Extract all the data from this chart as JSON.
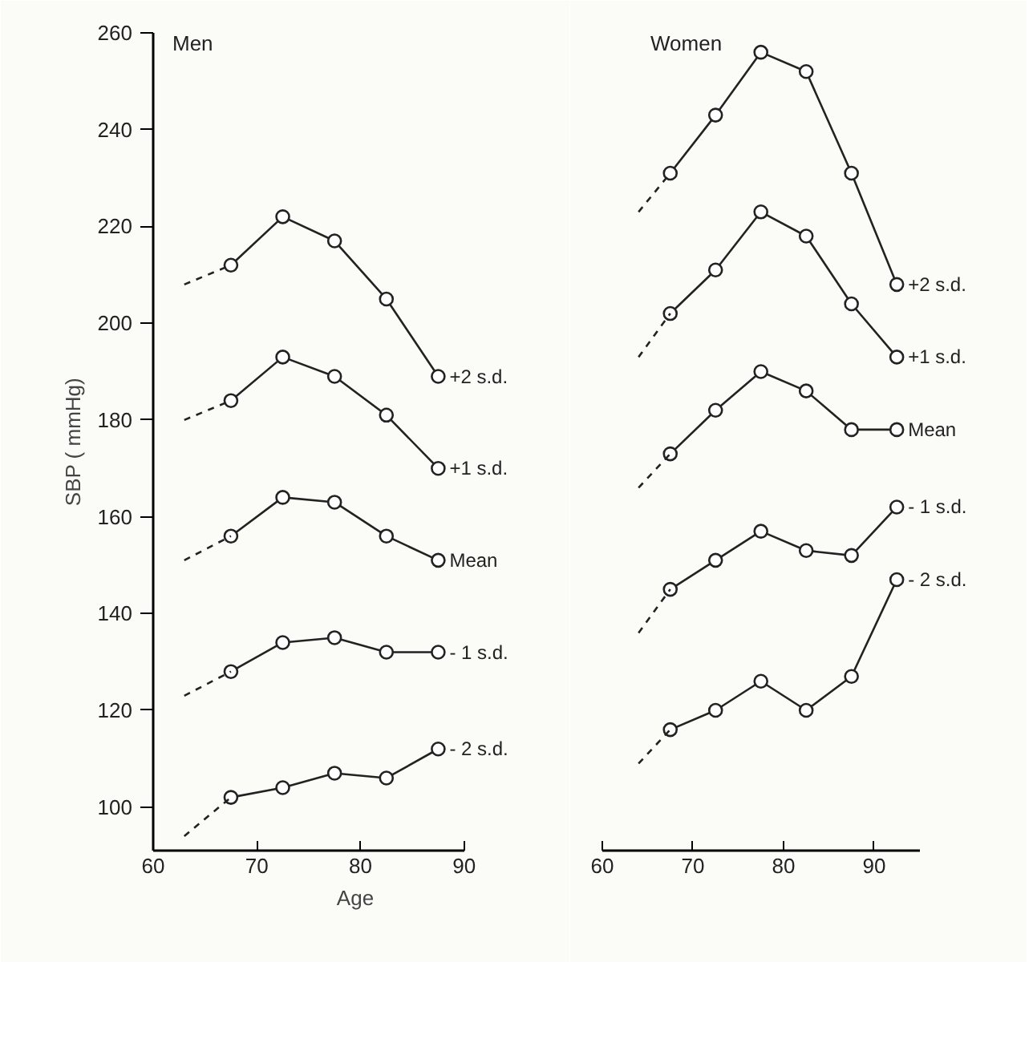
{
  "chart_data": [
    {
      "type": "line",
      "title": "Men",
      "ylabel": "SBP ( mmHg)",
      "xlabel": "Age",
      "xlim": [
        60,
        90
      ],
      "xticks": [
        60,
        70,
        80,
        90
      ],
      "ylim": [
        91,
        260
      ],
      "yticks": [
        100,
        120,
        140,
        160,
        180,
        200,
        220,
        240,
        260
      ],
      "grid": false,
      "marker": "circle",
      "series": [
        {
          "name": "+2 s.d.",
          "color": "#222222",
          "x": [
            67.5,
            72.5,
            77.5,
            82.5,
            87.5
          ],
          "values": [
            212,
            222,
            217,
            205,
            189
          ]
        },
        {
          "name": "+1 s.d.",
          "color": "#222222",
          "x": [
            67.5,
            72.5,
            77.5,
            82.5,
            87.5
          ],
          "values": [
            184,
            193,
            189,
            181,
            170
          ]
        },
        {
          "name": "Mean",
          "color": "#222222",
          "x": [
            67.5,
            72.5,
            77.5,
            82.5,
            87.5
          ],
          "values": [
            156,
            164,
            163,
            156,
            151
          ]
        },
        {
          "name": "- 1 s.d.",
          "color": "#222222",
          "x": [
            67.5,
            72.5,
            77.5,
            82.5,
            87.5
          ],
          "values": [
            128,
            134,
            135,
            132,
            132
          ]
        },
        {
          "name": "- 2 s.d.",
          "color": "#222222",
          "x": [
            67.5,
            72.5,
            77.5,
            82.5,
            87.5
          ],
          "values": [
            102,
            104,
            107,
            106,
            112
          ]
        },
        {
          "color": "#222222",
          "line_style": "dashed",
          "marker": "none",
          "x": [
            63,
            67.5
          ],
          "values": [
            208,
            212
          ]
        },
        {
          "color": "#222222",
          "line_style": "dashed",
          "marker": "none",
          "x": [
            63,
            67.5
          ],
          "values": [
            180,
            184
          ]
        },
        {
          "color": "#222222",
          "line_style": "dashed",
          "marker": "none",
          "x": [
            63,
            67.5
          ],
          "values": [
            151,
            156
          ]
        },
        {
          "color": "#222222",
          "line_style": "dashed",
          "marker": "none",
          "x": [
            63,
            67.5
          ],
          "values": [
            123,
            128
          ]
        },
        {
          "color": "#222222",
          "line_style": "dashed",
          "marker": "none",
          "x": [
            63,
            67.5
          ],
          "values": [
            94,
            102
          ]
        }
      ]
    },
    {
      "type": "line",
      "title": "Women",
      "xlim": [
        60,
        95
      ],
      "xticks": [
        60,
        70,
        80,
        90
      ],
      "ylim": [
        91,
        260
      ],
      "yticks": [
        100,
        120,
        140,
        160,
        180,
        200,
        220,
        240,
        260
      ],
      "tick_labels": "x",
      "grid": false,
      "marker": "circle",
      "series": [
        {
          "name": "+2 s.d.",
          "color": "#222222",
          "x": [
            67.5,
            72.5,
            77.5,
            82.5,
            87.5,
            92.5
          ],
          "values": [
            231,
            243,
            256,
            252,
            231,
            208
          ]
        },
        {
          "name": "+1 s.d.",
          "color": "#222222",
          "x": [
            67.5,
            72.5,
            77.5,
            82.5,
            87.5,
            92.5
          ],
          "values": [
            202,
            211,
            223,
            218,
            204,
            193
          ]
        },
        {
          "name": "Mean",
          "color": "#222222",
          "x": [
            67.5,
            72.5,
            77.5,
            82.5,
            87.5,
            92.5
          ],
          "values": [
            173,
            182,
            190,
            186,
            178,
            178
          ]
        },
        {
          "name": "- 1 s.d.",
          "color": "#222222",
          "x": [
            67.5,
            72.5,
            77.5,
            82.5,
            87.5,
            92.5
          ],
          "values": [
            145,
            151,
            157,
            153,
            152,
            162
          ]
        },
        {
          "name": "- 2 s.d.",
          "color": "#222222",
          "x": [
            67.5,
            72.5,
            77.5,
            82.5,
            87.5,
            92.5
          ],
          "values": [
            116,
            120,
            126,
            120,
            127,
            147
          ]
        },
        {
          "color": "#222222",
          "line_style": "dashed",
          "marker": "none",
          "x": [
            64,
            67.5
          ],
          "values": [
            223,
            231
          ]
        },
        {
          "color": "#222222",
          "line_style": "dashed",
          "marker": "none",
          "x": [
            64,
            67.5
          ],
          "values": [
            193,
            202
          ]
        },
        {
          "color": "#222222",
          "line_style": "dashed",
          "marker": "none",
          "x": [
            64,
            67.5
          ],
          "values": [
            166,
            173
          ]
        },
        {
          "color": "#222222",
          "line_style": "dashed",
          "marker": "none",
          "x": [
            64,
            67.5
          ],
          "values": [
            136,
            145
          ]
        },
        {
          "color": "#222222",
          "line_style": "dashed",
          "marker": "none",
          "x": [
            64,
            67.5
          ],
          "values": [
            109,
            116
          ]
        }
      ]
    }
  ]
}
